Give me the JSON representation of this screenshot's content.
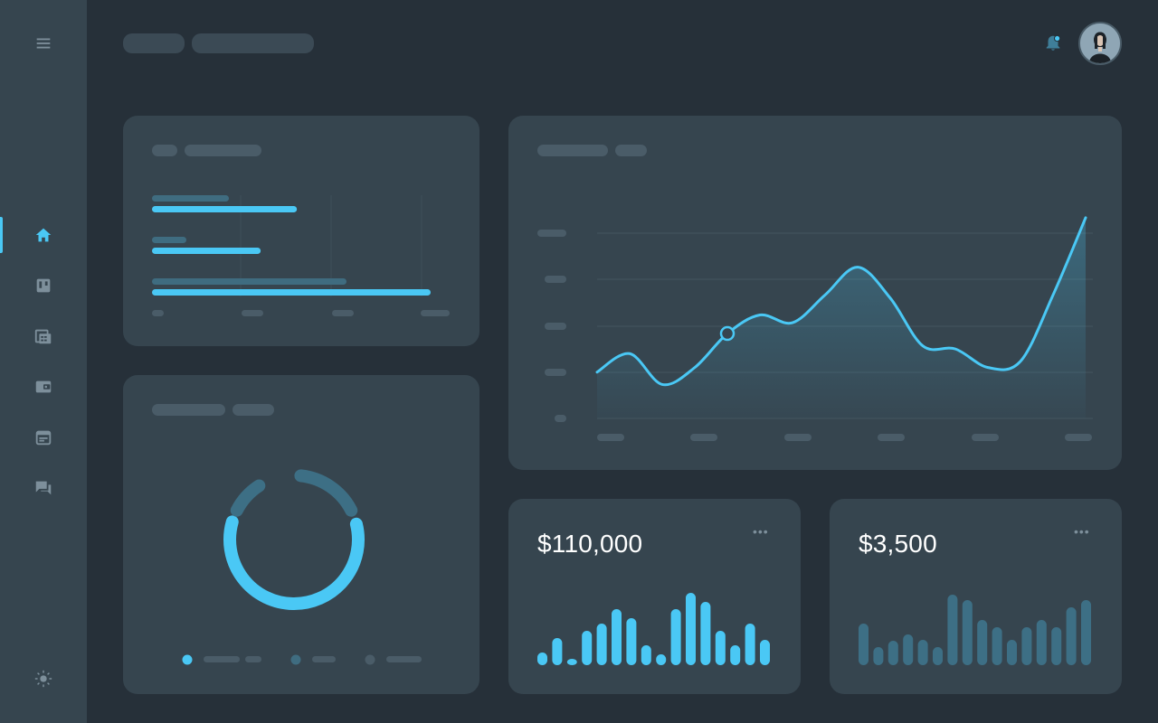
{
  "sidebar": {
    "items": [
      {
        "name": "home-icon",
        "active": true
      },
      {
        "name": "board-icon",
        "active": false
      },
      {
        "name": "calculator-icon",
        "active": false
      },
      {
        "name": "wallet-icon",
        "active": false
      },
      {
        "name": "calendar-icon",
        "active": false
      },
      {
        "name": "chat-icon",
        "active": false
      }
    ],
    "menu_icon": "menu-icon",
    "theme_icon": "sun-icon"
  },
  "header": {
    "notification_icon": "bell-icon",
    "has_unread": true
  },
  "colors": {
    "accent": "#4ac8f5",
    "muted_accent": "#3d6f85",
    "card": "#36454f",
    "background": "#263039",
    "sidebar": "#36454f"
  },
  "bar_chart_card": {
    "chart_data": {
      "type": "bar",
      "orientation": "horizontal",
      "values": [
        0.52,
        0.39,
        1.0
      ],
      "xlim": [
        0,
        1
      ]
    }
  },
  "line_chart_card": {
    "chart_data": {
      "type": "area",
      "x": [
        0,
        1,
        2,
        3,
        4,
        5,
        6,
        7,
        8,
        9,
        10,
        11,
        12,
        13,
        14,
        15
      ],
      "values": [
        30,
        42,
        22,
        33,
        55,
        67,
        62,
        80,
        98,
        78,
        47,
        45,
        33,
        37,
        80,
        130
      ],
      "ylim": [
        0,
        120
      ],
      "highlight_index": 4,
      "grid": true
    }
  },
  "donut_card": {
    "chart_data": {
      "type": "pie",
      "style": "donut",
      "segments": [
        {
          "value": 0.62,
          "color": "#4ac8f5"
        },
        {
          "value": 0.22,
          "color": "#3d6f85"
        },
        {
          "value": 0.08,
          "color": "#3d6f85"
        }
      ]
    }
  },
  "stat_cards": [
    {
      "amount": "$110,000",
      "menu": "•••",
      "chart_data": {
        "type": "bar",
        "values": [
          14,
          30,
          7,
          38,
          46,
          62,
          52,
          22,
          12,
          62,
          80,
          70,
          38,
          22,
          46,
          28
        ],
        "color": "#4ac8f5"
      }
    },
    {
      "amount": "$3,500",
      "menu": "•••",
      "chart_data": {
        "type": "bar",
        "values": [
          46,
          20,
          27,
          34,
          28,
          20,
          78,
          72,
          50,
          42,
          28,
          42,
          50,
          42,
          64,
          72
        ],
        "color": "#3d6f85"
      }
    }
  ]
}
